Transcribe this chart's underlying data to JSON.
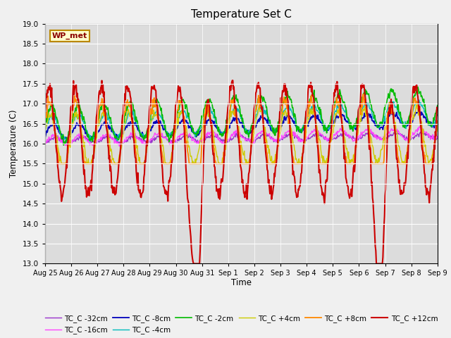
{
  "title": "Temperature Set C",
  "xlabel": "Time",
  "ylabel": "Temperature (C)",
  "ylim": [
    13.0,
    19.0
  ],
  "yticks": [
    13.0,
    13.5,
    14.0,
    14.5,
    15.0,
    15.5,
    16.0,
    16.5,
    17.0,
    17.5,
    18.0,
    18.5,
    19.0
  ],
  "x_labels": [
    "Aug 25",
    "Aug 26",
    "Aug 27",
    "Aug 28",
    "Aug 29",
    "Aug 30",
    "Aug 31",
    "Sep 1",
    "Sep 2",
    "Sep 3",
    "Sep 4",
    "Sep 5",
    "Sep 6",
    "Sep 7",
    "Sep 8",
    "Sep 9"
  ],
  "series_order": [
    "TC_C -32cm",
    "TC_C -16cm",
    "TC_C -8cm",
    "TC_C -4cm",
    "TC_C -2cm",
    "TC_C +4cm",
    "TC_C +8cm",
    "TC_C +12cm"
  ],
  "legend_order": [
    "TC_C -32cm",
    "TC_C -16cm",
    "TC_C -8cm",
    "TC_C -4cm",
    "TC_C -2cm",
    "TC_C +4cm",
    "TC_C +8cm",
    "TC_C +12cm"
  ],
  "colors": {
    "TC_C -32cm": "#9933CC",
    "TC_C -16cm": "#FF44FF",
    "TC_C -8cm": "#0000BB",
    "TC_C -4cm": "#00BBBB",
    "TC_C -2cm": "#00BB00",
    "TC_C +4cm": "#CCCC00",
    "TC_C +8cm": "#FF8800",
    "TC_C +12cm": "#CC0000"
  },
  "lw": {
    "TC_C -32cm": 1.0,
    "TC_C -16cm": 1.0,
    "TC_C -8cm": 1.3,
    "TC_C -4cm": 1.0,
    "TC_C -2cm": 1.2,
    "TC_C +4cm": 1.0,
    "TC_C +8cm": 1.3,
    "TC_C +12cm": 1.5
  },
  "annotation": "WP_met",
  "bg_color": "#DCDCDC",
  "fig_color": "#F0F0F0"
}
